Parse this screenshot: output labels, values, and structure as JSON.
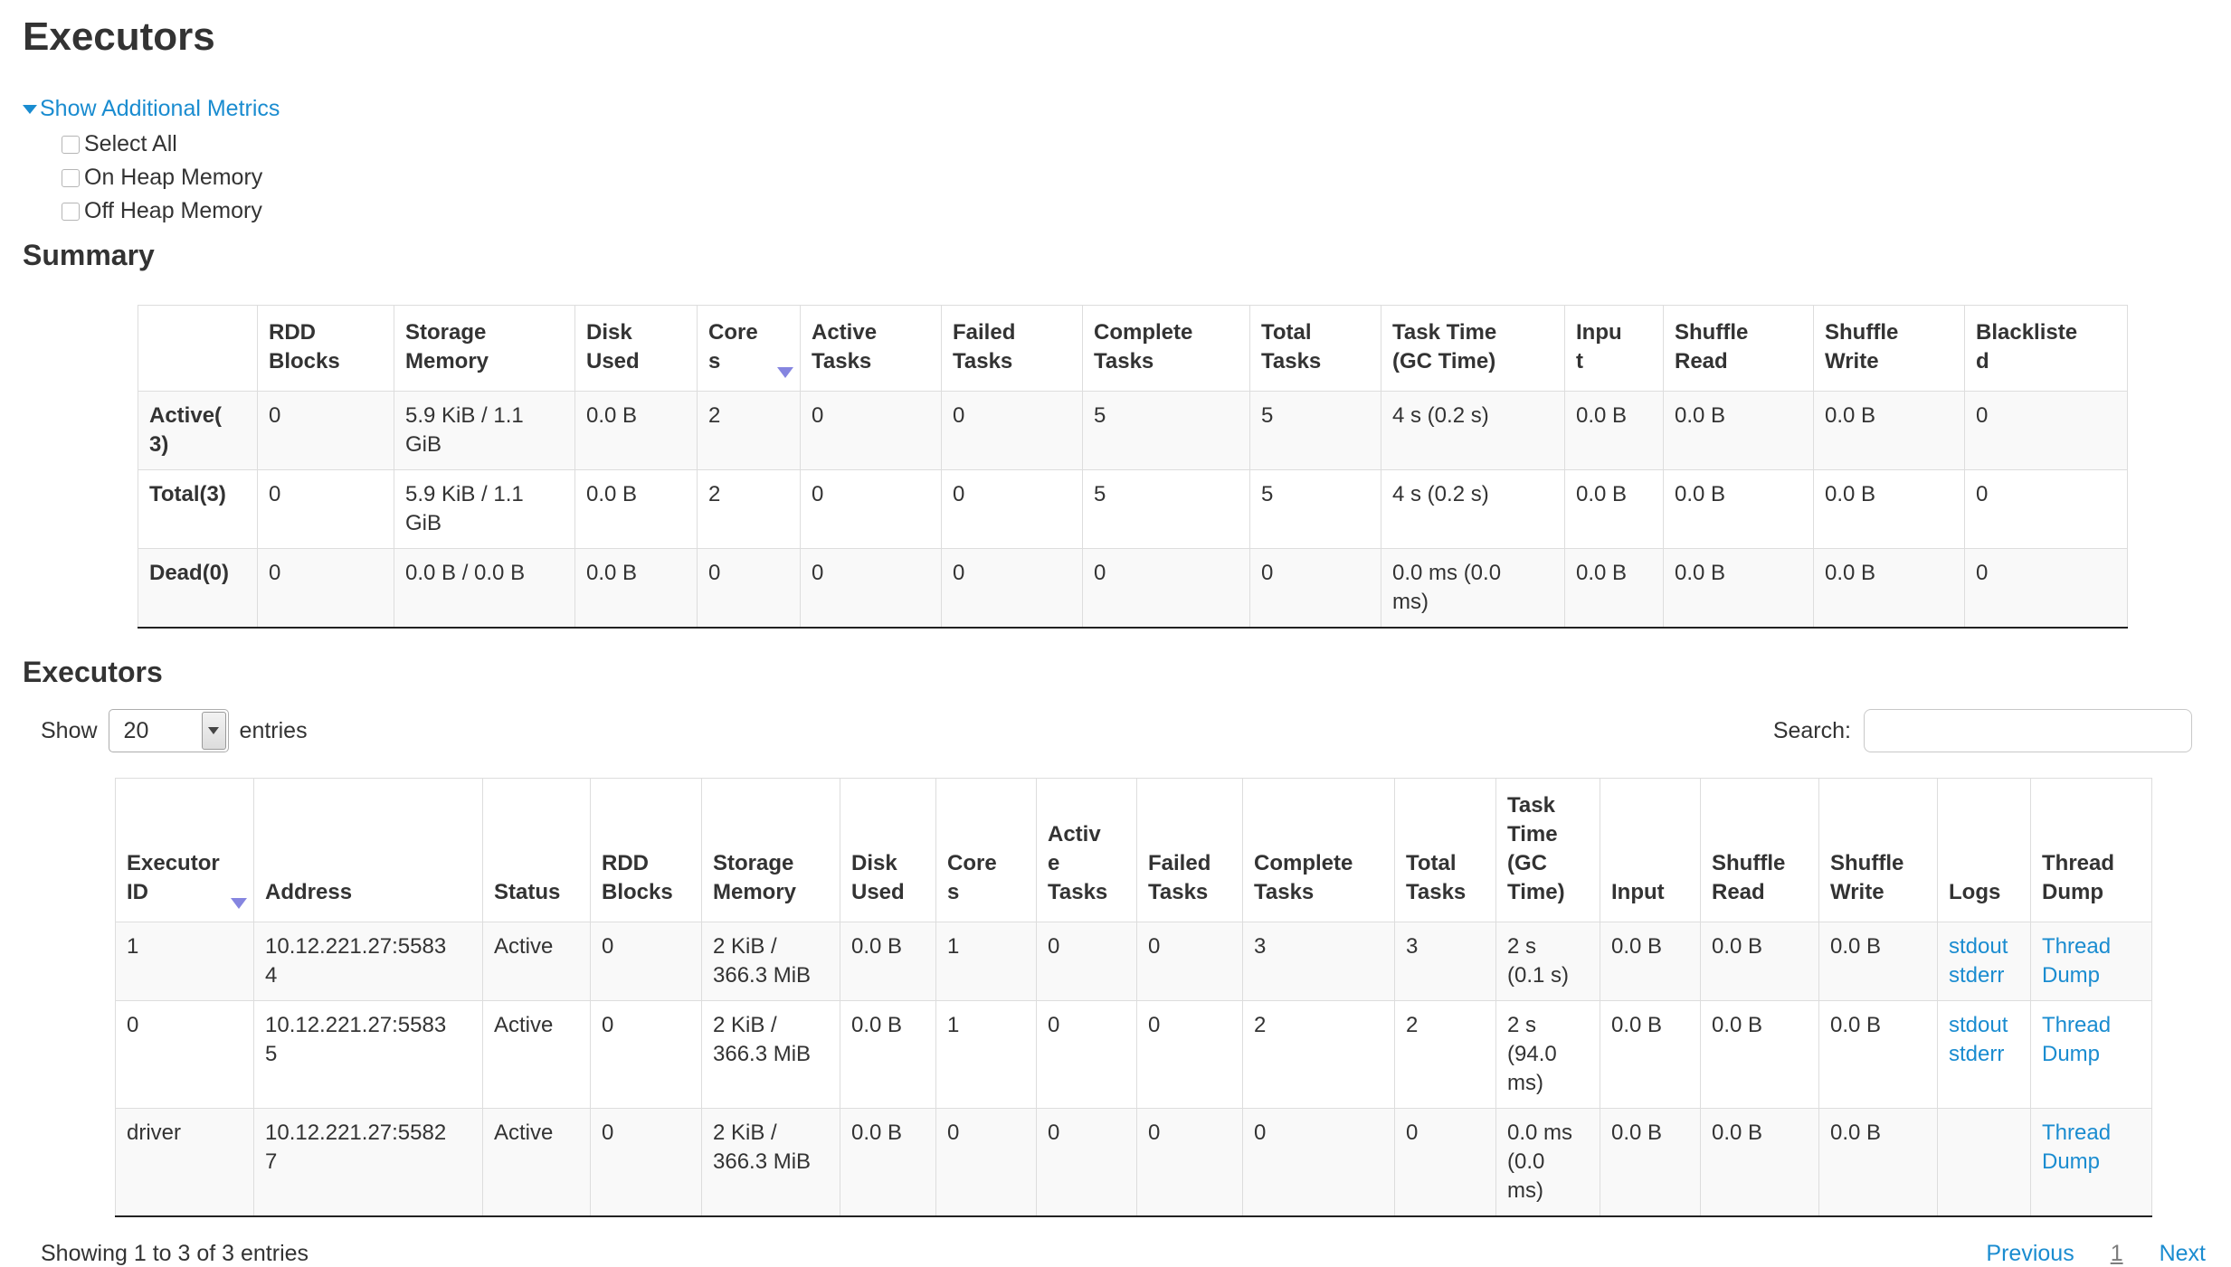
{
  "page": {
    "title": "Executors"
  },
  "colors": {
    "link": "#1a8cd0",
    "sort_arrow": "#8585e0",
    "row_stripe": "#f9f9f9",
    "table_border": "#dddddd",
    "text": "#333333"
  },
  "icons": {
    "toggle_caret": "caret-down",
    "sort_desc": "triangle-down",
    "select_caret": "caret-down"
  },
  "metrics": {
    "toggle_label": "Show Additional Metrics",
    "checkboxes": [
      {
        "label": "Select All",
        "checked": false
      },
      {
        "label": "On Heap Memory",
        "checked": false
      },
      {
        "label": "Off Heap Memory",
        "checked": false
      }
    ]
  },
  "summary": {
    "heading": "Summary",
    "columns": [
      "",
      "RDD Blocks",
      "Storage Memory",
      "Disk Used",
      "Cores",
      "Active Tasks",
      "Failed Tasks",
      "Complete Tasks",
      "Total Tasks",
      "Task Time (GC Time)",
      "Input",
      "Shuffle Read",
      "Shuffle Write",
      "Blacklisted"
    ],
    "sorted_column": "Cores",
    "sort_direction": "desc",
    "rows": [
      {
        "label": "Active(3)",
        "values": [
          "0",
          "5.9 KiB / 1.1 GiB",
          "0.0 B",
          "2",
          "0",
          "0",
          "5",
          "5",
          "4 s (0.2 s)",
          "0.0 B",
          "0.0 B",
          "0.0 B",
          "0"
        ]
      },
      {
        "label": "Total(3)",
        "values": [
          "0",
          "5.9 KiB / 1.1 GiB",
          "0.0 B",
          "2",
          "0",
          "0",
          "5",
          "5",
          "4 s (0.2 s)",
          "0.0 B",
          "0.0 B",
          "0.0 B",
          "0"
        ]
      },
      {
        "label": "Dead(0)",
        "values": [
          "0",
          "0.0 B / 0.0 B",
          "0.0 B",
          "0",
          "0",
          "0",
          "0",
          "0",
          "0.0 ms (0.0 ms)",
          "0.0 B",
          "0.0 B",
          "0.0 B",
          "0"
        ]
      }
    ]
  },
  "executors_section": {
    "heading": "Executors",
    "show_label": "Show",
    "entries_value": "20",
    "entries_label": "entries",
    "search_label": "Search:",
    "search_value": "",
    "columns": [
      "Executor ID",
      "Address",
      "Status",
      "RDD Blocks",
      "Storage Memory",
      "Disk Used",
      "Cores",
      "Active Tasks",
      "Failed Tasks",
      "Complete Tasks",
      "Total Tasks",
      "Task Time (GC Time)",
      "Input",
      "Shuffle Read",
      "Shuffle Write",
      "Logs",
      "Thread Dump"
    ],
    "sorted_column": "Executor ID",
    "sort_direction": "desc",
    "rows": [
      {
        "executor_id": "1",
        "address": "10.12.221.27:55834",
        "status": "Active",
        "rdd_blocks": "0",
        "storage_memory": "2 KiB / 366.3 MiB",
        "disk_used": "0.0 B",
        "cores": "1",
        "active_tasks": "0",
        "failed_tasks": "0",
        "complete_tasks": "3",
        "total_tasks": "3",
        "task_time": "2 s (0.1 s)",
        "input": "0.0 B",
        "shuffle_read": "0.0 B",
        "shuffle_write": "0.0 B",
        "logs": [
          "stdout",
          "stderr"
        ],
        "thread_dump": "Thread Dump"
      },
      {
        "executor_id": "0",
        "address": "10.12.221.27:55835",
        "status": "Active",
        "rdd_blocks": "0",
        "storage_memory": "2 KiB / 366.3 MiB",
        "disk_used": "0.0 B",
        "cores": "1",
        "active_tasks": "0",
        "failed_tasks": "0",
        "complete_tasks": "2",
        "total_tasks": "2",
        "task_time": "2 s (94.0 ms)",
        "input": "0.0 B",
        "shuffle_read": "0.0 B",
        "shuffle_write": "0.0 B",
        "logs": [
          "stdout",
          "stderr"
        ],
        "thread_dump": "Thread Dump"
      },
      {
        "executor_id": "driver",
        "address": "10.12.221.27:55827",
        "status": "Active",
        "rdd_blocks": "0",
        "storage_memory": "2 KiB / 366.3 MiB",
        "disk_used": "0.0 B",
        "cores": "0",
        "active_tasks": "0",
        "failed_tasks": "0",
        "complete_tasks": "0",
        "total_tasks": "0",
        "task_time": "0.0 ms (0.0 ms)",
        "input": "0.0 B",
        "shuffle_read": "0.0 B",
        "shuffle_write": "0.0 B",
        "logs": [],
        "thread_dump": "Thread Dump"
      }
    ],
    "footer": {
      "status": "Showing 1 to 3 of 3 entries",
      "previous": "Previous",
      "page": "1",
      "next": "Next"
    }
  }
}
